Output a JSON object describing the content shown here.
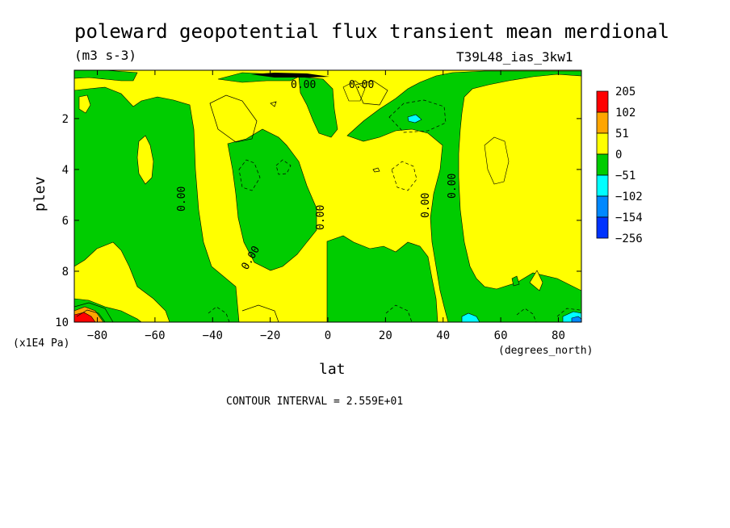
{
  "chart_data": {
    "type": "contour",
    "title": "poleward geopotential flux transient mean merdional",
    "units": "(m3 s-3)",
    "run_label": "T39L48_ias_3kw1",
    "xlabel": "lat",
    "x_units": "(degrees_north)",
    "ylabel": "plev",
    "y_units": "(x1E4 Pa)",
    "xlim": [
      -88,
      88
    ],
    "ylim": [
      0.1,
      10
    ],
    "y_inverted": true,
    "x_ticks": [
      "-80",
      "-60",
      "-40",
      "-20",
      "0",
      "20",
      "40",
      "60",
      "80"
    ],
    "y_ticks": [
      "2",
      "4",
      "6",
      "8",
      "10"
    ],
    "contour_interval_text": "CONTOUR INTERVAL = 2.559E+01",
    "contour_labels": [
      "0.00",
      "0.00",
      "0.00",
      "0.00",
      "0.00",
      "0.00",
      "0.00",
      "0.00"
    ],
    "colorbar": {
      "levels": [
        "205",
        "102",
        "51",
        "0",
        "-51",
        "-102",
        "-154",
        "-256"
      ],
      "colors": [
        "#ff0000",
        "#ffa500",
        "#ffff00",
        "#00cc00",
        "#00ffff",
        "#0088ff",
        "#0033ff"
      ]
    }
  }
}
